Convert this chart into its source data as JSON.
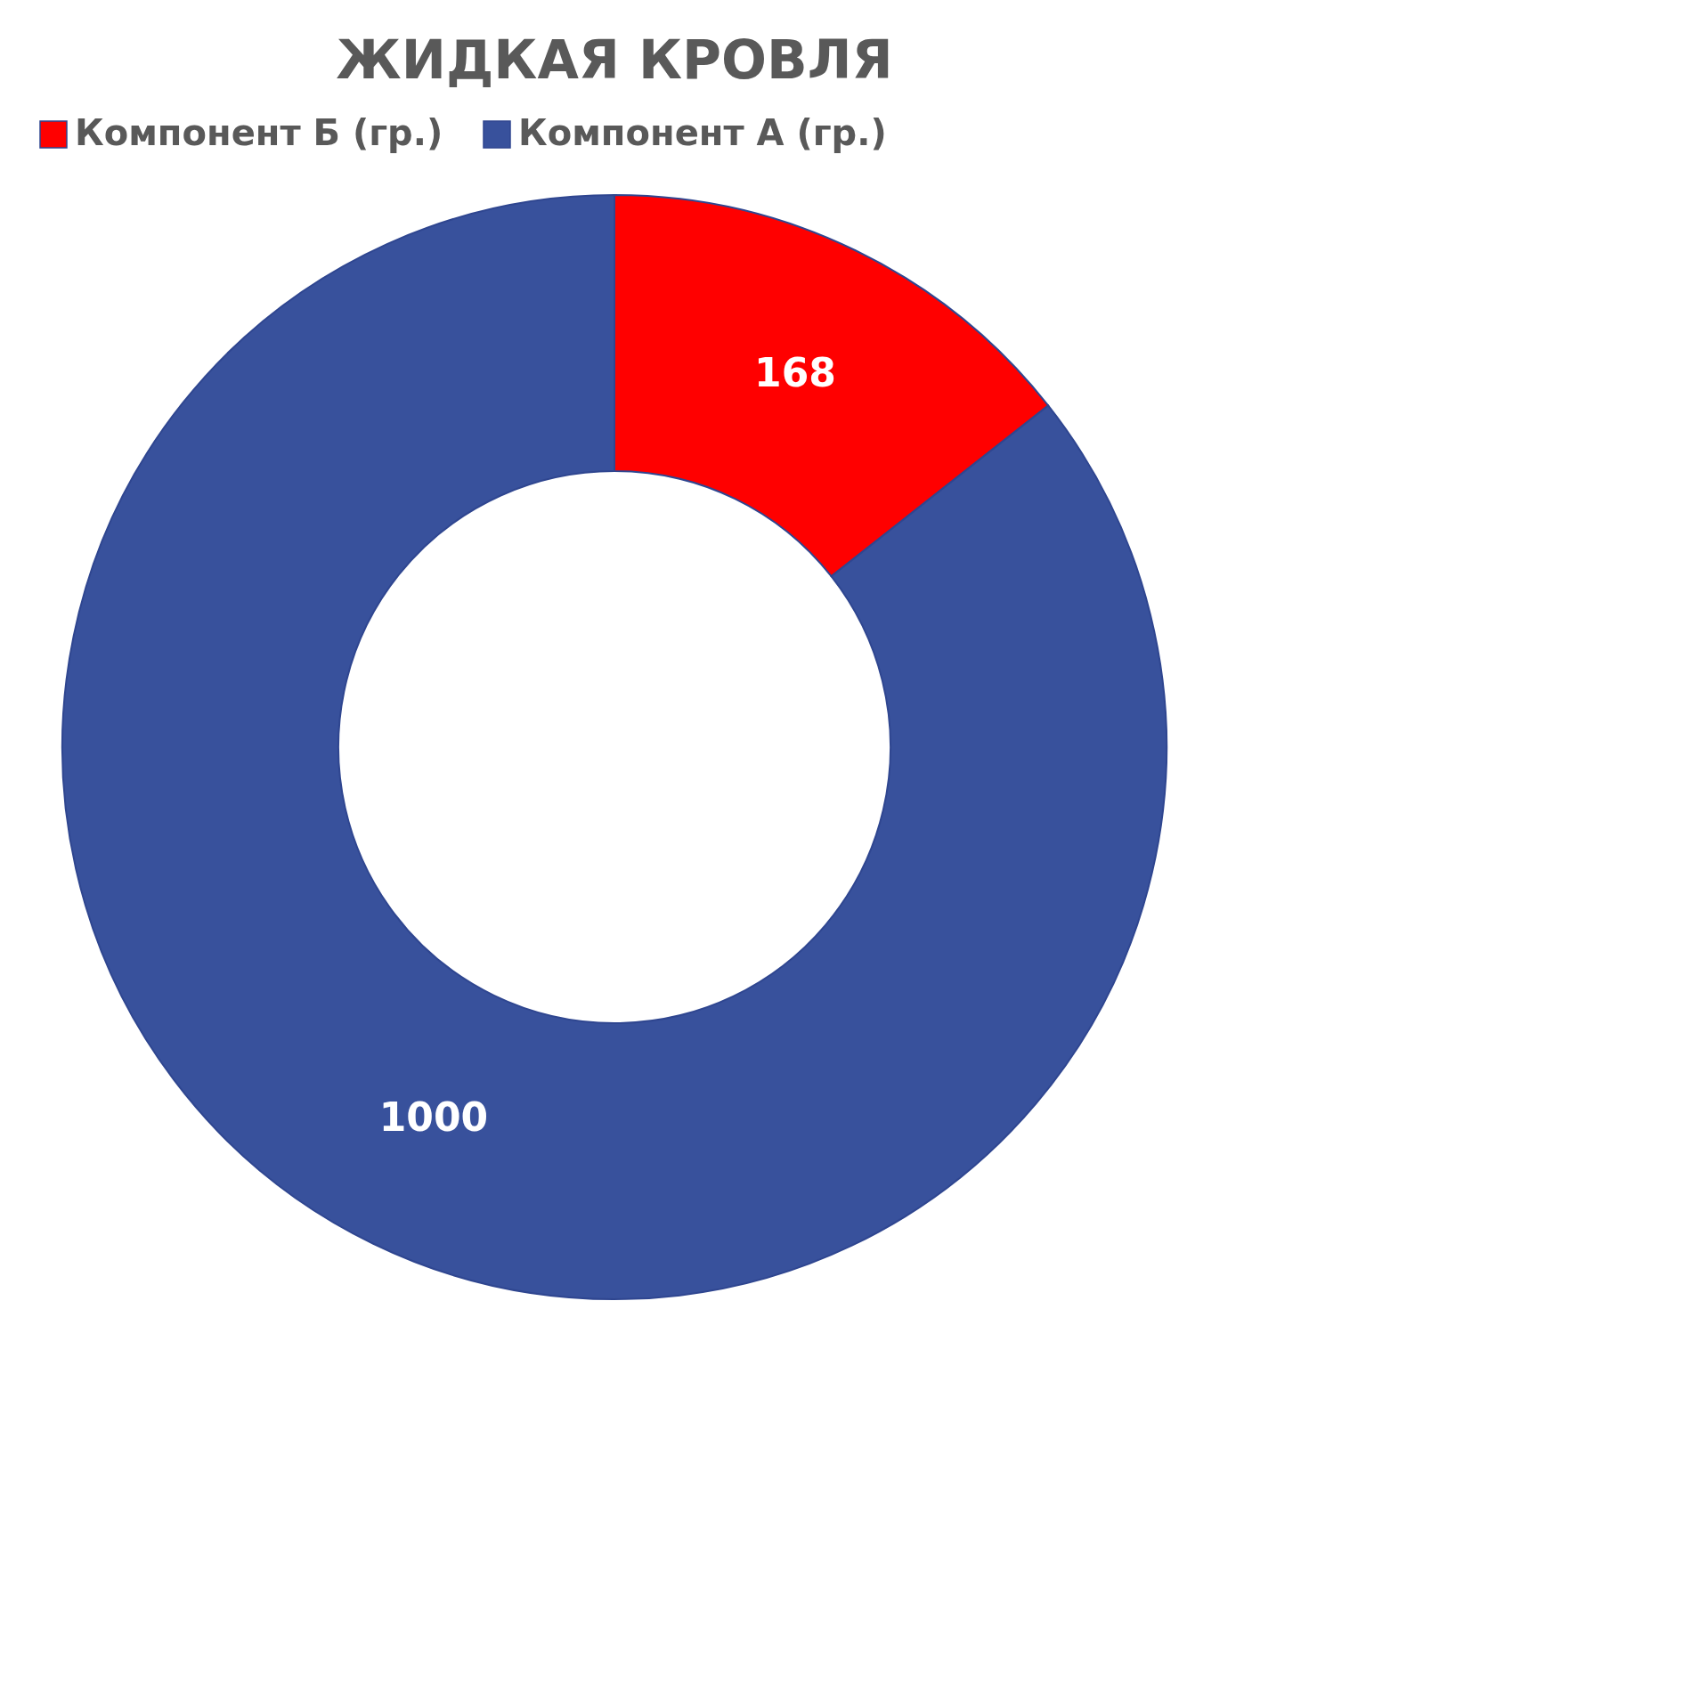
{
  "chart_data": {
    "type": "donut",
    "title": "ЖИДКАЯ КРОВЛЯ",
    "categories": [
      "Компонент Б (гр.)",
      "Компонент А (гр.)"
    ],
    "values": [
      168,
      1000
    ],
    "colors": [
      "#ff0000",
      "#38519c"
    ],
    "data_labels": true,
    "legend": "top"
  }
}
